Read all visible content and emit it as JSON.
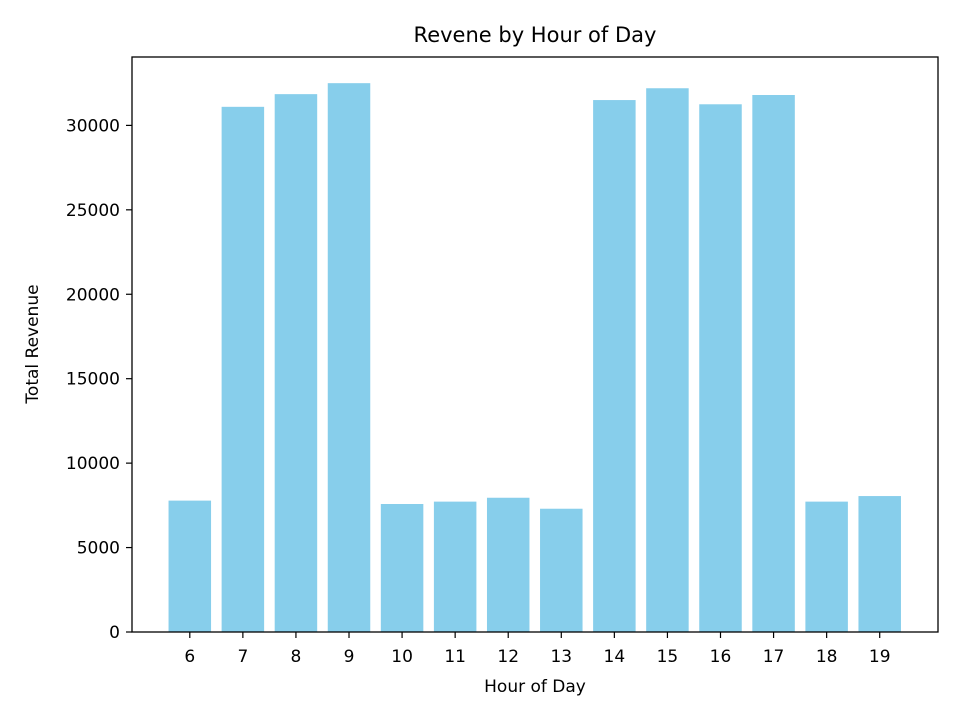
{
  "chart_data": {
    "type": "bar",
    "title": "Revene by Hour of Day",
    "xlabel": "Hour of Day",
    "ylabel": "Total Revenue",
    "categories": [
      "6",
      "7",
      "8",
      "9",
      "10",
      "11",
      "12",
      "13",
      "14",
      "15",
      "16",
      "17",
      "18",
      "19"
    ],
    "values": [
      7780,
      31100,
      31850,
      32500,
      7580,
      7720,
      7950,
      7300,
      31500,
      32200,
      31250,
      31800,
      7720,
      8050
    ],
    "ylim": [
      0,
      34050
    ],
    "yticks": [
      0,
      5000,
      10000,
      15000,
      20000,
      25000,
      30000
    ],
    "bar_color": "#87CEEB",
    "grid": false,
    "legend": "none"
  }
}
